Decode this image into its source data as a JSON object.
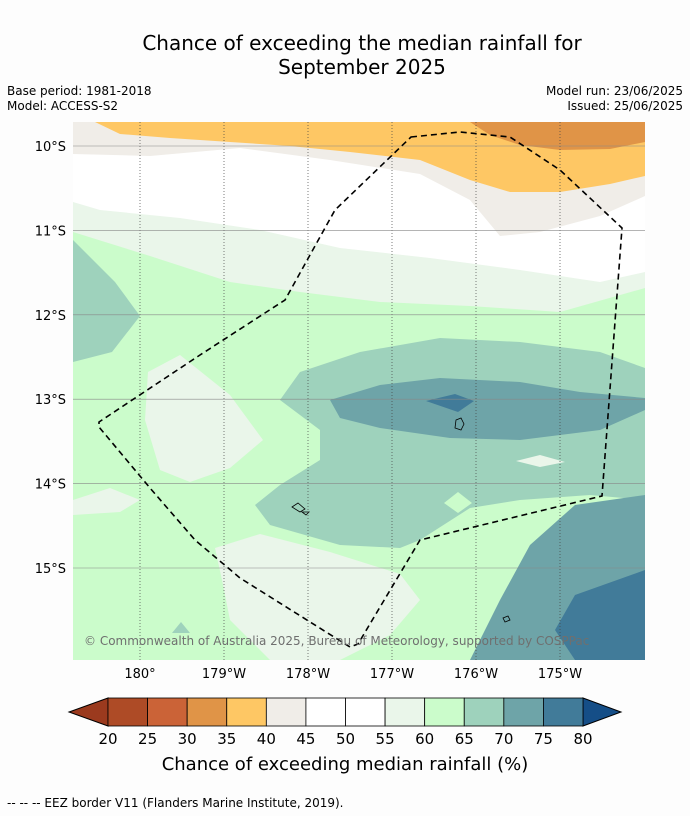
{
  "title_line1": "Chance of exceeding the median rainfall for",
  "title_line2": "September 2025",
  "meta": {
    "base_period": "Base period: 1981-2018",
    "model": "Model: ACCESS-S2",
    "model_run": "Model run: 23/06/2025",
    "issued": "Issued: 25/06/2025"
  },
  "chart_data": {
    "type": "heatmap",
    "title": "Chance of exceeding the median rainfall for September 2025",
    "x_ticks": [
      "180°",
      "179°W",
      "178°W",
      "177°W",
      "176°W",
      "175°W"
    ],
    "y_ticks": [
      "10°S",
      "11°S",
      "12°S",
      "13°S",
      "14°S",
      "15°S"
    ],
    "grid": true,
    "colorbar": {
      "label": "Chance of exceeding median rainfall (%)",
      "ticks": [
        20,
        25,
        30,
        35,
        40,
        45,
        50,
        55,
        60,
        65,
        70,
        75,
        80
      ],
      "colors": [
        "#ae4b26",
        "#cb6337",
        "#e09447",
        "#fec764",
        "#f0ede8",
        "#ffffff",
        "#ffffff",
        "#eaf6ea",
        "#cbfccb",
        "#9ed2bc",
        "#6ea4a8",
        "#417b99"
      ],
      "under_color": "#9b3a1e",
      "over_color": "#154e87"
    },
    "annotation": "© Commonwealth of Australia 2025, Bureau of Meteorology, supported by COSPPac"
  },
  "footer": "-- -- -- EEZ border V11 (Flanders Marine Institute, 2019)."
}
